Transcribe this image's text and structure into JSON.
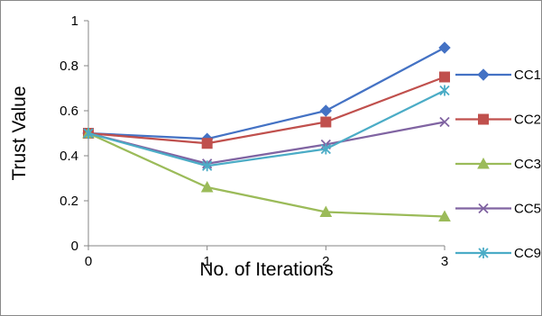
{
  "chart_data": {
    "type": "line",
    "title": "",
    "xlabel": "No. of Iterations",
    "ylabel": "Trust Value",
    "x": [
      0,
      1,
      2,
      3
    ],
    "xticks": [
      "0",
      "1",
      "2",
      "3"
    ],
    "ylim": [
      0,
      1
    ],
    "yticks": [
      "0",
      "0.2",
      "0.4",
      "0.6",
      "0.8",
      "1"
    ],
    "grid": false,
    "legend_position": "right",
    "series": [
      {
        "name": "CC1",
        "values": [
          0.5,
          0.475,
          0.6,
          0.88
        ],
        "color": "#4472C4",
        "marker": "diamond"
      },
      {
        "name": "CC2",
        "values": [
          0.5,
          0.455,
          0.55,
          0.75
        ],
        "color": "#C0504D",
        "marker": "square"
      },
      {
        "name": "CC3",
        "values": [
          0.5,
          0.26,
          0.15,
          0.13
        ],
        "color": "#9BBB59",
        "marker": "triangle"
      },
      {
        "name": "CC5",
        "values": [
          0.5,
          0.365,
          0.45,
          0.55
        ],
        "color": "#8064A2",
        "marker": "x"
      },
      {
        "name": "CC9",
        "values": [
          0.5,
          0.355,
          0.43,
          0.69
        ],
        "color": "#4BACC6",
        "marker": "star"
      }
    ]
  }
}
